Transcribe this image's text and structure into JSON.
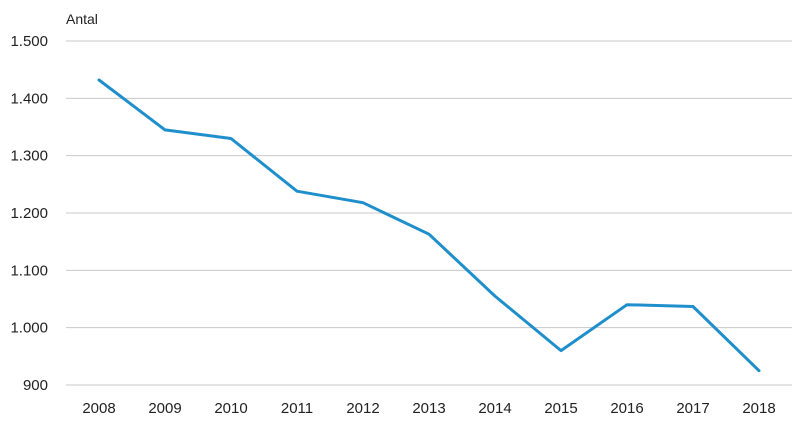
{
  "chart_data": {
    "type": "line",
    "ylabel": "Antal",
    "xlabel": "",
    "categories": [
      "2008",
      "2009",
      "2010",
      "2011",
      "2012",
      "2013",
      "2014",
      "2015",
      "2016",
      "2017",
      "2018"
    ],
    "series": [
      {
        "values": [
          1432,
          1345,
          1330,
          1238,
          1218,
          1163,
          1055,
          960,
          1040,
          1037,
          925
        ],
        "color": "#1f8fcc"
      }
    ],
    "ylim": [
      900,
      1500
    ],
    "yticks": [
      {
        "value": 1500,
        "label": "1.500"
      },
      {
        "value": 1400,
        "label": "1.400"
      },
      {
        "value": 1300,
        "label": "1.300"
      },
      {
        "value": 1200,
        "label": "1.200"
      },
      {
        "value": 1100,
        "label": "1.100"
      },
      {
        "value": 1000,
        "label": "1.000"
      },
      {
        "value": 900,
        "label": "900"
      }
    ],
    "grid": true,
    "legend": "none"
  }
}
